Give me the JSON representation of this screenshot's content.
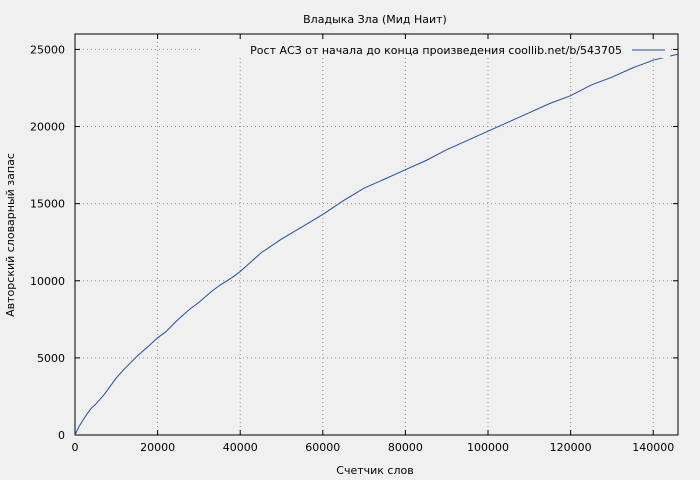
{
  "chart_data": {
    "type": "line",
    "title": "Владыка Зла (Мид Наит)",
    "xlabel": "Счетчик слов",
    "ylabel": "Авторский словарный запас",
    "xlim": [
      0,
      146000
    ],
    "ylim": [
      0,
      26000
    ],
    "xticks": [
      0,
      20000,
      40000,
      60000,
      80000,
      100000,
      120000,
      140000
    ],
    "yticks": [
      0,
      5000,
      10000,
      15000,
      20000,
      25000
    ],
    "grid": true,
    "legend_position": "top-right",
    "series": [
      {
        "name": "Рост АСЗ от начала до конца произведения coollib.net/b/543705",
        "color": "#1f4fa8",
        "x": [
          0,
          500,
          1000,
          2000,
          3000,
          4000,
          5000,
          7000,
          10000,
          12000,
          15000,
          18000,
          20000,
          22000,
          25000,
          28000,
          30000,
          33000,
          35000,
          38000,
          40000,
          45000,
          50000,
          55000,
          60000,
          65000,
          70000,
          75000,
          80000,
          85000,
          90000,
          95000,
          100000,
          105000,
          110000,
          115000,
          120000,
          125000,
          130000,
          135000,
          140000,
          146000
        ],
        "y": [
          0,
          300,
          550,
          1000,
          1400,
          1750,
          2000,
          2600,
          3700,
          4300,
          5100,
          5800,
          6300,
          6700,
          7500,
          8200,
          8600,
          9300,
          9700,
          10200,
          10600,
          11800,
          12700,
          13500,
          14300,
          15200,
          16000,
          16600,
          17200,
          17800,
          18500,
          19100,
          19700,
          20300,
          20900,
          21500,
          22000,
          22700,
          23200,
          23800,
          24300,
          24700
        ]
      }
    ]
  }
}
